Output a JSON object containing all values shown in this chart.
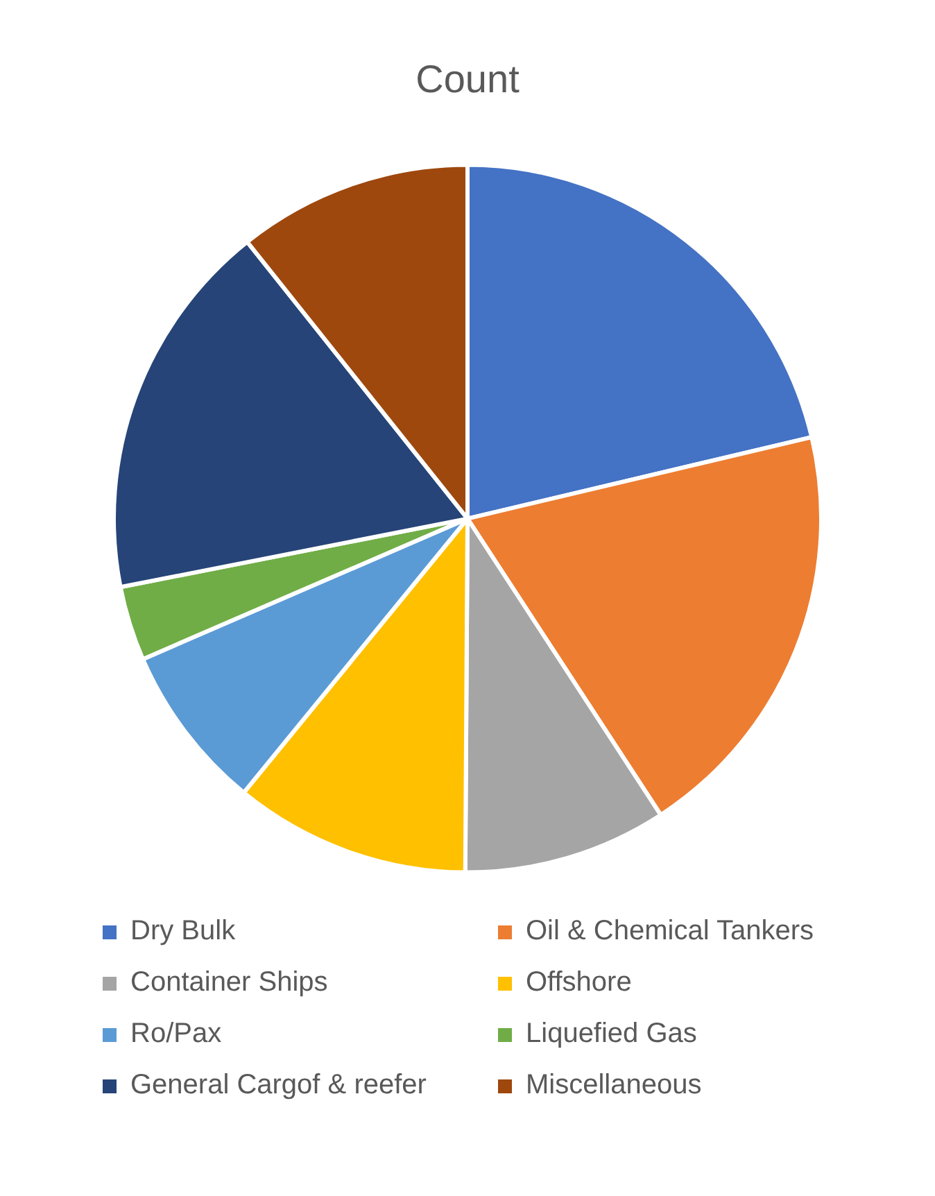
{
  "chart_data": {
    "type": "pie",
    "title": "Count",
    "categories": [
      "Dry Bulk",
      "Oil & Chemical Tankers",
      "Container Ships",
      "Offshore",
      "Ro/Pax",
      "Liquefied Gas",
      "General Cargof & reefer",
      "Miscellaneous"
    ],
    "values": [
      21.3,
      19.5,
      9.3,
      10.8,
      7.6,
      3.4,
      17.4,
      10.7
    ],
    "colors": [
      "#4472c4",
      "#ed7d31",
      "#a5a5a5",
      "#ffc000",
      "#5b9bd5",
      "#70ad47",
      "#264478",
      "#9e480e"
    ],
    "legend": "bottom"
  }
}
